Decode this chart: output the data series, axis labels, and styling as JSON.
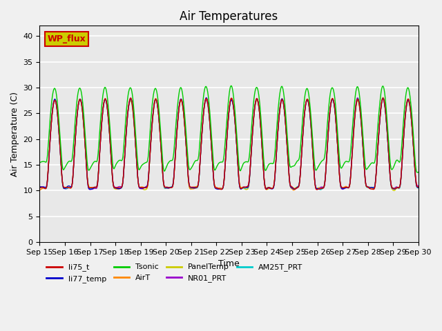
{
  "title": "Air Temperatures",
  "xlabel": "Time",
  "ylabel": "Air Temperature (C)",
  "ylim": [
    0,
    42
  ],
  "yticks": [
    0,
    5,
    10,
    15,
    20,
    25,
    30,
    35,
    40
  ],
  "x_labels": [
    "Sep 15",
    "Sep 16",
    "Sep 17",
    "Sep 18",
    "Sep 19",
    "Sep 20",
    "Sep 21",
    "Sep 22",
    "Sep 23",
    "Sep 24",
    "Sep 25",
    "Sep 26",
    "Sep 27",
    "Sep 28",
    "Sep 29",
    "Sep 30"
  ],
  "series_colors": {
    "li75_t": "#cc0000",
    "li77_temp": "#0000cc",
    "Tsonic": "#00cc00",
    "AirT": "#ff8800",
    "PanelTemp": "#cccc00",
    "NR01_PRT": "#9900cc",
    "AM25T_PRT": "#00cccc"
  },
  "legend_label": "WP_flux",
  "legend_box_color": "#cccc00",
  "legend_box_edge": "#cc0000",
  "background_color": "#e8e8e8",
  "grid_color": "#ffffff",
  "title_fontsize": 12,
  "axis_fontsize": 9,
  "tick_fontsize": 8
}
